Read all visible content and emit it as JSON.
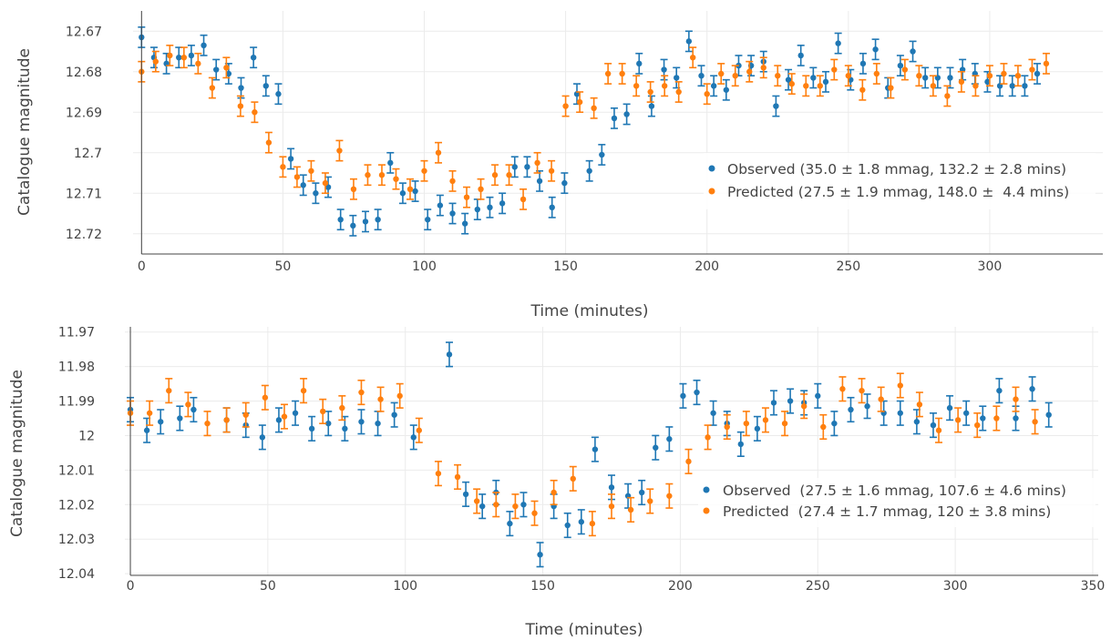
{
  "colors": {
    "observed": "#1f77b4",
    "predicted": "#ff7f0e"
  },
  "chart_data": [
    {
      "type": "scatter",
      "error_bars": true,
      "xlabel": "Time (minutes)",
      "ylabel": "Catalogue magnitude",
      "y_reversed": true,
      "grid": true,
      "legend_position": "right",
      "xlim": [
        -3,
        340
      ],
      "ylim": [
        12.665,
        12.725
      ],
      "x_ticks": [
        0,
        50,
        100,
        150,
        200,
        250,
        300
      ],
      "y_ticks": [
        12.67,
        12.68,
        12.69,
        12.7,
        12.71,
        12.72
      ],
      "y_tick_labels": [
        "12.67",
        "12.68",
        "12.69",
        "12.7",
        "12.71",
        "12.72"
      ],
      "series": [
        {
          "name": "Observed (35.0 ± 1.8 mmag, 132.2 ± 2.8 mins)",
          "color": "#1f77b4",
          "error": 0.0025,
          "x": [
            0,
            4.4,
            8.8,
            13.2,
            17.6,
            22,
            26.4,
            30.8,
            35.2,
            39.6,
            44,
            48.4,
            52.8,
            57.2,
            61.6,
            66,
            70.4,
            74.8,
            79.2,
            83.6,
            88,
            92.4,
            96.8,
            101.2,
            105.6,
            110,
            114.4,
            118.8,
            123.2,
            127.6,
            132,
            136.4,
            140.8,
            145.2,
            149.6,
            154,
            158.4,
            162.8,
            167.2,
            171.6,
            176,
            180.4,
            184.8,
            189.2,
            193.6,
            198,
            202.4,
            206.8,
            211.2,
            215.6,
            220,
            224.4,
            228.8,
            233.2,
            237.6,
            242,
            246.4,
            250.8,
            255.2,
            259.6,
            264,
            268.4,
            272.8,
            277.2,
            281.6,
            286,
            290.4,
            294.8,
            299.2,
            303.6,
            308,
            312.4,
            316.8
          ],
          "y": [
            12.6715,
            12.6765,
            12.678,
            12.6765,
            12.676,
            12.6735,
            12.6795,
            12.6805,
            12.684,
            12.6765,
            12.6835,
            12.6855,
            12.7015,
            12.708,
            12.71,
            12.7085,
            12.7165,
            12.718,
            12.717,
            12.7165,
            12.7025,
            12.71,
            12.7095,
            12.7165,
            12.713,
            12.715,
            12.7175,
            12.714,
            12.7135,
            12.7125,
            12.7035,
            12.7035,
            12.707,
            12.7135,
            12.7075,
            12.6855,
            12.7045,
            12.7005,
            12.6915,
            12.6905,
            12.678,
            12.6885,
            12.6795,
            12.6815,
            12.6725,
            12.681,
            12.6835,
            12.6845,
            12.6785,
            12.6785,
            12.6775,
            12.6885,
            12.682,
            12.676,
            12.6815,
            12.6825,
            12.673,
            12.682,
            12.678,
            12.6745,
            12.684,
            12.6785,
            12.675,
            12.6815,
            12.6815,
            12.6815,
            12.6795,
            12.6805,
            12.6825,
            12.6835,
            12.6835,
            12.6835,
            12.6805
          ]
        },
        {
          "name": "Predicted (27.5 ± 1.9 mmag, 148.0 ±  4.4 mins)",
          "color": "#ff7f0e",
          "error": 0.0025,
          "x": [
            0,
            5,
            10,
            15,
            20,
            25,
            30,
            35,
            40,
            45,
            50,
            55,
            60,
            65,
            70,
            75,
            80,
            85,
            90,
            95,
            100,
            105,
            110,
            115,
            120,
            125,
            130,
            135,
            140,
            145,
            150,
            155,
            160,
            165,
            170,
            175,
            180,
            185,
            190,
            195,
            200,
            205,
            210,
            215,
            220,
            225,
            230,
            235,
            240,
            245,
            250,
            255,
            260,
            265,
            270,
            275,
            280,
            285,
            290,
            295,
            300,
            305,
            310,
            315,
            320
          ],
          "y": [
            12.68,
            12.6775,
            12.676,
            12.6765,
            12.678,
            12.684,
            12.679,
            12.6885,
            12.69,
            12.6975,
            12.7035,
            12.706,
            12.7045,
            12.7075,
            12.6995,
            12.709,
            12.7055,
            12.7055,
            12.7065,
            12.709,
            12.7045,
            12.7,
            12.707,
            12.711,
            12.709,
            12.7055,
            12.7055,
            12.7115,
            12.7025,
            12.7045,
            12.6885,
            12.6875,
            12.689,
            12.6805,
            12.6805,
            12.6835,
            12.685,
            12.6835,
            12.685,
            12.6765,
            12.6855,
            12.6805,
            12.681,
            12.68,
            12.679,
            12.681,
            12.683,
            12.6835,
            12.6835,
            12.6795,
            12.681,
            12.6845,
            12.6805,
            12.684,
            12.6795,
            12.681,
            12.6835,
            12.686,
            12.6825,
            12.6835,
            12.681,
            12.6805,
            12.681,
            12.6795,
            12.678
          ]
        }
      ]
    },
    {
      "type": "scatter",
      "error_bars": true,
      "xlabel": "Time (minutes)",
      "ylabel": "Catalogue magnitude",
      "y_reversed": true,
      "grid": true,
      "legend_position": "right",
      "xlim": [
        -2,
        352
      ],
      "ylim": [
        11.9685,
        12.0405
      ],
      "x_ticks": [
        0,
        50,
        100,
        150,
        200,
        250,
        300,
        350
      ],
      "y_ticks": [
        11.97,
        11.98,
        11.99,
        12,
        12.01,
        12.02,
        12.03,
        12.04
      ],
      "y_tick_labels": [
        "11.97",
        "11.98",
        "11.99",
        "12",
        "12.01",
        "12.02",
        "12.03",
        "12.04"
      ],
      "series": [
        {
          "name": "Observed  (27.5 ± 1.6 mmag, 107.6 ± 4.6 mins)",
          "color": "#1f77b4",
          "error": 0.0035,
          "x": [
            0,
            6,
            11,
            18,
            23,
            35,
            42,
            48,
            54,
            60,
            66,
            72,
            78,
            84,
            90,
            96,
            103,
            116,
            122,
            128,
            133,
            138,
            143,
            149,
            154,
            159,
            164,
            169,
            175,
            181,
            186,
            191,
            196,
            201,
            206,
            212,
            217,
            222,
            228,
            234,
            240,
            245,
            250,
            256,
            262,
            268,
            274,
            280,
            286,
            292,
            298,
            304,
            310,
            316,
            322,
            328,
            334
          ],
          "y": [
            11.9925,
            11.9985,
            11.996,
            11.995,
            11.9925,
            11.9955,
            11.997,
            12.0005,
            11.9955,
            11.9935,
            11.998,
            11.9965,
            11.998,
            11.996,
            11.9965,
            11.994,
            12.0005,
            11.9765,
            12.017,
            12.0205,
            12.0165,
            12.0255,
            12.02,
            12.0345,
            12.0205,
            12.026,
            12.025,
            12.004,
            12.015,
            12.0175,
            12.0165,
            12.0035,
            12.001,
            11.9885,
            11.9875,
            11.9935,
            11.9965,
            12.0025,
            11.998,
            11.9905,
            11.99,
            11.9905,
            11.9885,
            11.9965,
            11.9925,
            11.9915,
            11.9935,
            11.9935,
            11.996,
            11.997,
            11.992,
            11.9935,
            11.995,
            11.987,
            11.995,
            11.9865,
            11.994
          ]
        },
        {
          "name": "Predicted  (27.4 ± 1.7 mmag, 120 ± 3.8 mins)",
          "color": "#ff7f0e",
          "error": 0.0035,
          "x": [
            0,
            7,
            14,
            21,
            28,
            35,
            42,
            49,
            56,
            63,
            70,
            77,
            84,
            91,
            98,
            105,
            112,
            119,
            126,
            133,
            140,
            147,
            154,
            161,
            168,
            175,
            182,
            189,
            196,
            203,
            210,
            217,
            224,
            231,
            238,
            245,
            252,
            259,
            266,
            273,
            280,
            287,
            294,
            301,
            308,
            315,
            322,
            329
          ],
          "y": [
            11.9935,
            11.9935,
            11.987,
            11.991,
            11.9965,
            11.9955,
            11.994,
            11.989,
            11.9945,
            11.987,
            11.993,
            11.992,
            11.9875,
            11.9895,
            11.9885,
            11.9985,
            12.011,
            12.012,
            12.019,
            12.02,
            12.0205,
            12.0225,
            12.0165,
            12.0125,
            12.0255,
            12.0205,
            12.0215,
            12.019,
            12.0175,
            12.0075,
            12.0005,
            11.9975,
            11.9965,
            11.9955,
            11.9965,
            11.9915,
            11.9975,
            11.9865,
            11.987,
            11.9895,
            11.9855,
            11.991,
            11.9985,
            11.9955,
            11.997,
            11.995,
            11.9895,
            11.996
          ]
        }
      ]
    }
  ]
}
